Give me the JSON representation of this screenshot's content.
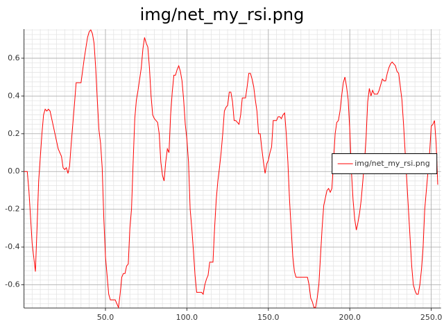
{
  "chart_data": {
    "type": "line",
    "title": "img/net_my_rsi.png",
    "x": [
      0,
      1,
      2,
      3,
      5,
      7,
      8,
      9,
      11,
      12,
      13,
      14,
      15,
      16,
      17,
      19,
      21,
      23,
      24,
      25,
      26,
      27,
      28,
      29,
      31,
      32,
      35,
      37,
      39,
      40,
      41,
      42,
      43,
      44,
      45,
      46,
      47,
      48,
      49,
      50,
      51,
      52,
      53,
      55,
      56,
      57,
      58,
      59,
      60,
      61,
      62,
      63,
      64,
      65,
      66,
      67,
      68,
      69,
      70,
      72,
      73,
      74,
      75,
      76,
      77,
      78,
      79,
      80,
      81,
      82,
      83,
      84,
      85,
      86,
      87,
      88,
      89,
      90,
      91,
      92,
      93,
      94,
      95,
      96,
      97,
      98,
      99,
      100,
      101,
      102,
      103,
      104,
      105,
      106,
      107,
      108,
      109,
      110,
      111,
      112,
      113,
      114,
      115,
      116,
      117,
      118,
      119,
      120,
      121,
      122,
      123,
      124,
      125,
      126,
      127,
      128,
      129,
      130,
      131,
      132,
      133,
      134,
      135,
      136,
      137,
      138,
      139,
      140,
      141,
      142,
      143,
      144,
      145,
      146,
      147,
      148,
      149,
      150,
      151,
      152,
      153,
      154,
      155,
      156,
      157,
      158,
      159,
      160,
      161,
      162,
      163,
      164,
      165,
      166,
      167,
      168,
      172,
      174,
      175,
      176,
      177,
      178,
      179,
      180,
      181,
      182,
      183,
      184,
      185,
      186,
      187,
      188,
      189,
      190,
      191,
      192,
      193,
      194,
      195,
      196,
      197,
      198,
      199,
      200,
      201,
      202,
      203,
      204,
      205,
      206,
      207,
      208,
      209,
      210,
      211,
      212,
      213,
      214,
      215,
      216,
      217,
      218,
      219,
      220,
      221,
      222,
      223,
      224,
      225,
      226,
      227,
      228,
      229,
      230,
      231,
      232,
      233,
      234,
      235,
      236,
      237,
      238,
      239,
      240,
      241,
      242,
      243,
      244,
      245,
      246,
      247,
      248,
      249,
      250,
      251,
      252,
      253,
      254
    ],
    "series": [
      {
        "name": "img/net_my_rsi.png",
        "color": "#ff0000",
        "values": [
          0,
          0,
          0,
          -0.1,
          -0.38,
          -0.53,
          -0.3,
          -0.05,
          0.2,
          0.3,
          0.33,
          0.32,
          0.33,
          0.32,
          0.28,
          0.2,
          0.12,
          0.08,
          0.02,
          0.01,
          0.02,
          -0.01,
          0.03,
          0.15,
          0.36,
          0.47,
          0.47,
          0.6,
          0.71,
          0.74,
          0.75,
          0.73,
          0.68,
          0.55,
          0.38,
          0.22,
          0.15,
          0.02,
          -0.25,
          -0.45,
          -0.55,
          -0.65,
          -0.68,
          -0.68,
          -0.68,
          -0.7,
          -0.72,
          -0.65,
          -0.56,
          -0.54,
          -0.54,
          -0.5,
          -0.49,
          -0.3,
          -0.2,
          0.05,
          0.28,
          0.38,
          0.43,
          0.55,
          0.65,
          0.71,
          0.68,
          0.66,
          0.55,
          0.4,
          0.3,
          0.28,
          0.27,
          0.26,
          0.2,
          0.05,
          -0.02,
          -0.05,
          0.05,
          0.12,
          0.1,
          0.3,
          0.42,
          0.51,
          0.51,
          0.54,
          0.56,
          0.53,
          0.48,
          0.38,
          0.25,
          0.17,
          0.05,
          -0.2,
          -0.3,
          -0.42,
          -0.55,
          -0.64,
          -0.64,
          -0.64,
          -0.64,
          -0.65,
          -0.6,
          -0.57,
          -0.55,
          -0.48,
          -0.48,
          -0.48,
          -0.3,
          -0.15,
          -0.05,
          0.02,
          0.1,
          0.2,
          0.32,
          0.34,
          0.35,
          0.42,
          0.42,
          0.37,
          0.27,
          0.27,
          0.26,
          0.25,
          0.3,
          0.39,
          0.39,
          0.39,
          0.45,
          0.52,
          0.52,
          0.49,
          0.45,
          0.38,
          0.32,
          0.2,
          0.2,
          0.12,
          0.05,
          -0.01,
          0.04,
          0.06,
          0.1,
          0.13,
          0.27,
          0.27,
          0.27,
          0.29,
          0.29,
          0.28,
          0.3,
          0.31,
          0.2,
          0.05,
          -0.15,
          -0.3,
          -0.45,
          -0.53,
          -0.56,
          -0.56,
          -0.56,
          -0.56,
          -0.6,
          -0.67,
          -0.69,
          -0.72,
          -0.72,
          -0.67,
          -0.6,
          -0.45,
          -0.3,
          -0.18,
          -0.14,
          -0.1,
          -0.09,
          -0.11,
          -0.09,
          0.05,
          0.2,
          0.26,
          0.27,
          0.32,
          0.4,
          0.47,
          0.5,
          0.45,
          0.38,
          0.22,
          0,
          -0.15,
          -0.25,
          -0.31,
          -0.27,
          -0.22,
          -0.15,
          -0.05,
          0.05,
          0.18,
          0.37,
          0.44,
          0.4,
          0.43,
          0.41,
          0.41,
          0.41,
          0.43,
          0.46,
          0.49,
          0.48,
          0.48,
          0.52,
          0.55,
          0.57,
          0.58,
          0.57,
          0.56,
          0.53,
          0.52,
          0.45,
          0.38,
          0.25,
          0.1,
          -0.05,
          -0.2,
          -0.35,
          -0.5,
          -0.6,
          -0.63,
          -0.65,
          -0.65,
          -0.6,
          -0.52,
          -0.4,
          -0.2,
          -0.1,
          0,
          0.1,
          0.24,
          0.25,
          0.27,
          0.15,
          -0.07
        ]
      }
    ],
    "xlim": [
      0,
      256
    ],
    "ylim": [
      -0.723,
      0.754
    ],
    "xticks": [
      {
        "value": 50,
        "label": "50.0"
      },
      {
        "value": 100,
        "label": "100.0"
      },
      {
        "value": 150,
        "label": "150.0"
      },
      {
        "value": 200,
        "label": "200.0"
      },
      {
        "value": 250,
        "label": "250.0"
      }
    ],
    "yticks": [
      -0.6,
      -0.4,
      -0.2,
      {
        "value": 0,
        "label": "0.0"
      },
      0.2,
      0.4,
      0.6
    ],
    "grid": true,
    "minor_grid": {
      "x": 5,
      "y": 0.025
    },
    "legend": "center right"
  }
}
